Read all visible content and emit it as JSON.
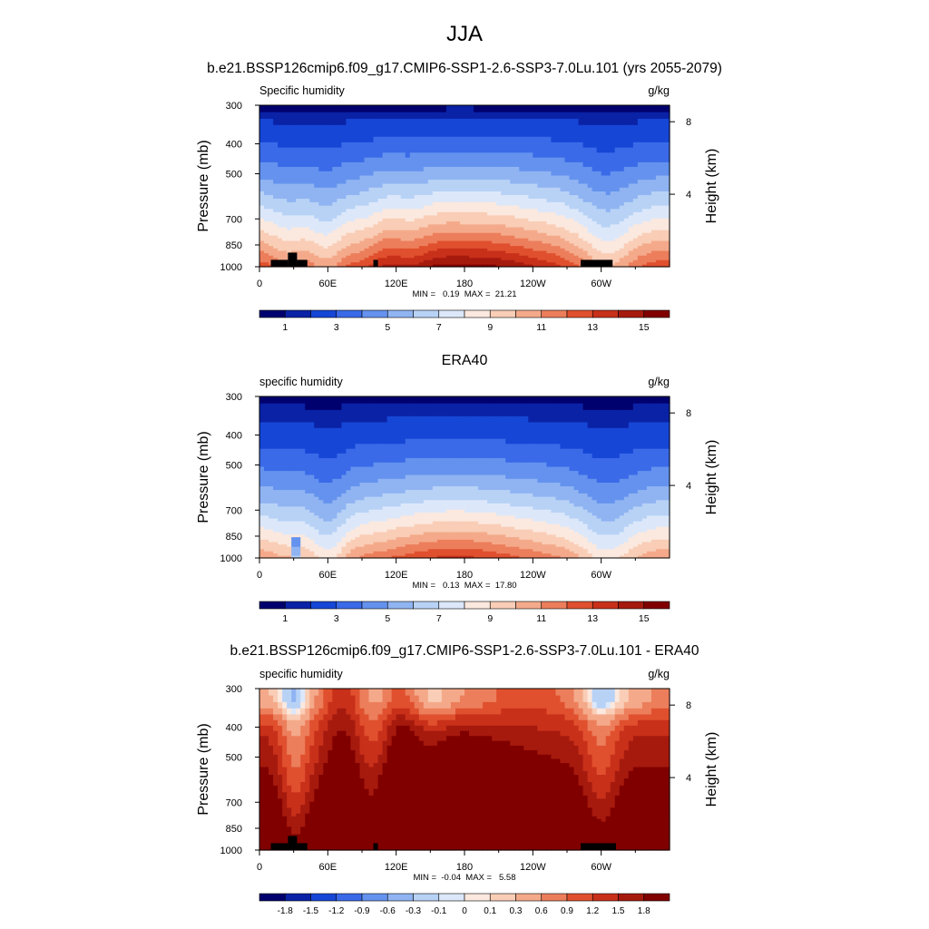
{
  "figure": {
    "main_title": "JJA",
    "titles": [
      "b.e21.BSSP126cmip6.f09_g17.CMIP6-SSP1-2.6-SSP3-7.0Lu.101 (yrs 2055-2079)",
      "ERA40",
      "b.e21.BSSP126cmip6.f09_g17.CMIP6-SSP1-2.6-SSP3-7.0Lu.101 - ERA40"
    ]
  },
  "colors": {
    "palette": [
      "#00006e",
      "#0a22a6",
      "#1646d6",
      "#3a6ae8",
      "#6492ee",
      "#90b4f2",
      "#b8d2f6",
      "#dce8fa",
      "#fbe8de",
      "#f9cdb6",
      "#f4aa8a",
      "#ec7e5c",
      "#e0502e",
      "#c8301a",
      "#a61a0e",
      "#800000"
    ],
    "terrain": "#000000"
  },
  "chart_data": [
    {
      "type": "heatmap",
      "title": "b.e21.BSSP126cmip6.f09_g17.CMIP6-SSP1-2.6-SSP3-7.0Lu.101 (yrs 2055-2079)",
      "left_label": "Specific humidity",
      "units": "g/kg",
      "ylabel": "Pressure (mb)",
      "ylabel_right": "Height (km)",
      "y_ticks": [
        "300",
        "400",
        "500",
        "700",
        "850",
        "1000"
      ],
      "y_tick_values": [
        300,
        400,
        500,
        700,
        850,
        1000
      ],
      "y_right_ticks": [
        "8",
        "4"
      ],
      "y_right_tick_values": [
        8,
        4
      ],
      "x_ticks": [
        "0",
        "60E",
        "120E",
        "180",
        "120W",
        "60W"
      ],
      "x_tick_values": [
        0,
        60,
        120,
        180,
        240,
        300
      ],
      "xlim": [
        0,
        360
      ],
      "ylim": [
        1000,
        300
      ],
      "stats": "MIN =   0.19  MAX =  21.21",
      "colorbar_labels": [
        "1",
        "3",
        "5",
        "7",
        "9",
        "11",
        "13",
        "15"
      ],
      "colorbar_levels": [
        0.5,
        1,
        2,
        3,
        4,
        5,
        6,
        7,
        8,
        9,
        10,
        11,
        12,
        13,
        14,
        15
      ],
      "terrain_x": [
        10,
        25,
        25,
        33,
        33,
        42,
        100,
        104,
        282,
        310
      ],
      "terrain_p": [
        950,
        950,
        900,
        900,
        950,
        950,
        950,
        950,
        950,
        950
      ]
    },
    {
      "type": "heatmap",
      "title": "ERA40",
      "left_label": "specific humidity",
      "units": "g/kg",
      "ylabel": "Pressure (mb)",
      "ylabel_right": "Height (km)",
      "y_ticks": [
        "300",
        "400",
        "500",
        "700",
        "850",
        "1000"
      ],
      "y_tick_values": [
        300,
        400,
        500,
        700,
        850,
        1000
      ],
      "y_right_ticks": [
        "8",
        "4"
      ],
      "y_right_tick_values": [
        8,
        4
      ],
      "x_ticks": [
        "0",
        "60E",
        "120E",
        "180",
        "120W",
        "60W"
      ],
      "x_tick_values": [
        0,
        60,
        120,
        180,
        240,
        300
      ],
      "xlim": [
        0,
        360
      ],
      "ylim": [
        1000,
        300
      ],
      "stats": "MIN =   0.13  MAX =  17.80",
      "colorbar_labels": [
        "1",
        "3",
        "5",
        "7",
        "9",
        "11",
        "13",
        "15"
      ],
      "colorbar_levels": [
        0.5,
        1,
        2,
        3,
        4,
        5,
        6,
        7,
        8,
        9,
        10,
        11,
        12,
        13,
        14,
        15
      ]
    },
    {
      "type": "heatmap",
      "title": "b.e21.BSSP126cmip6.f09_g17.CMIP6-SSP1-2.6-SSP3-7.0Lu.101 - ERA40",
      "left_label": "specific humidity",
      "units": "g/kg",
      "ylabel": "Pressure (mb)",
      "ylabel_right": "Height (km)",
      "y_ticks": [
        "300",
        "400",
        "500",
        "700",
        "850",
        "1000"
      ],
      "y_tick_values": [
        300,
        400,
        500,
        700,
        850,
        1000
      ],
      "y_right_ticks": [
        "8",
        "4"
      ],
      "y_right_tick_values": [
        8,
        4
      ],
      "x_ticks": [
        "0",
        "60E",
        "120E",
        "180",
        "120W",
        "60W"
      ],
      "x_tick_values": [
        0,
        60,
        120,
        180,
        240,
        300
      ],
      "xlim": [
        0,
        360
      ],
      "ylim": [
        1000,
        300
      ],
      "stats": "MIN =  -0.04  MAX =   5.58",
      "colorbar_labels": [
        "-1.8",
        "-1.5",
        "-1.2",
        "-0.9",
        "-0.6",
        "-0.3",
        "-0.1",
        "0",
        "0.1",
        "0.3",
        "0.6",
        "0.9",
        "1.2",
        "1.5",
        "1.8"
      ],
      "colorbar_levels": [
        -1.8,
        -1.5,
        -1.2,
        -0.9,
        -0.6,
        -0.3,
        -0.1,
        0,
        0.1,
        0.3,
        0.6,
        0.9,
        1.2,
        1.5,
        1.8
      ],
      "terrain_x": [
        10,
        25,
        25,
        33,
        33,
        42,
        100,
        104,
        282,
        313
      ],
      "terrain_p": [
        950,
        950,
        900,
        900,
        950,
        950,
        950,
        950,
        950,
        950
      ]
    }
  ]
}
